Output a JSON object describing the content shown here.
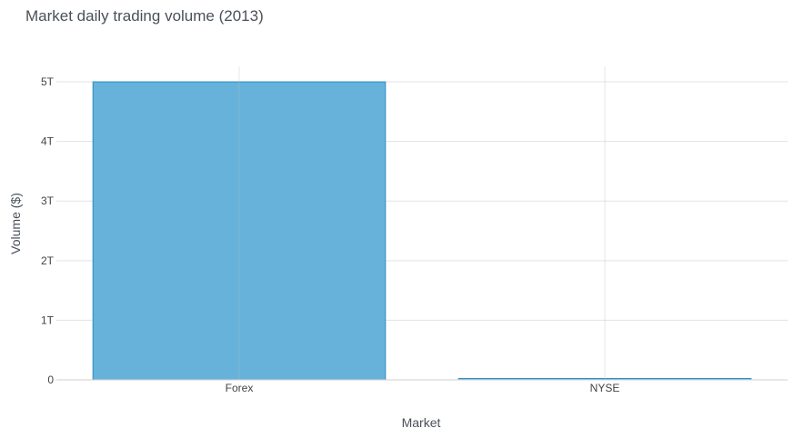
{
  "chart_data": {
    "type": "bar",
    "title": "Market daily trading volume (2013)",
    "xlabel": "Market",
    "ylabel": "Volume ($)",
    "categories": [
      "Forex",
      "NYSE"
    ],
    "values": [
      5000000000000,
      20000000000
    ],
    "ylim": [
      0,
      5260000000000
    ],
    "yticks": [
      0,
      1000000000000,
      2000000000000,
      3000000000000,
      4000000000000,
      5000000000000
    ],
    "ytick_labels": [
      "0",
      "1T",
      "2T",
      "3T",
      "4T",
      "5T"
    ],
    "grid": true,
    "bar_fill": "#66b2da",
    "bar_stroke": "#2d8fc4"
  }
}
